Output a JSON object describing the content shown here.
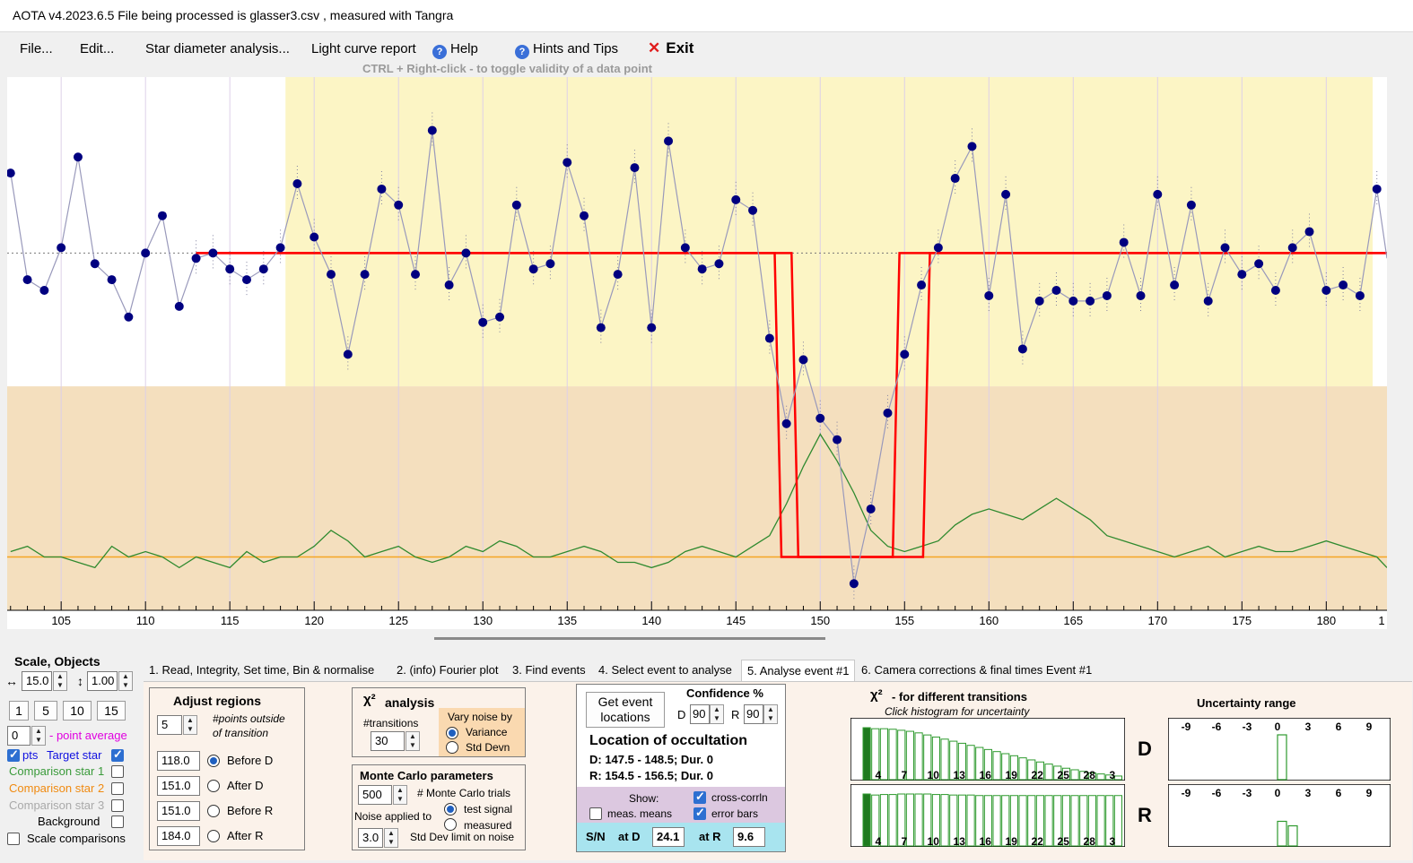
{
  "app": {
    "title": "AOTA v4.2023.6.5    File being processed is  glasser3.csv ,  measured with Tangra"
  },
  "menu": {
    "file": "File...",
    "edit": "Edit...",
    "star_diameter": "Star diameter analysis...",
    "light_curve": "Light curve report",
    "help": "Help",
    "hints": "Hints and Tips",
    "exit": "Exit",
    "hint_text": "CTRL + Right-click   -   to toggle validity of a data point"
  },
  "plot": {
    "x_ticks": [
      "105",
      "110",
      "115",
      "120",
      "125",
      "130",
      "135",
      "140",
      "145",
      "150",
      "155",
      "160",
      "165",
      "170",
      "175",
      "180",
      "1"
    ],
    "x_min": 101.8,
    "x_max": 183.6,
    "colors": {
      "target": "#000080",
      "comparison1": "#2f8a2f",
      "model": "#ff0000",
      "yellow_region": "#fcf5c5",
      "tan_region": "#f4dfbe",
      "baseline": "#f5a623"
    },
    "target_points": [
      [
        102,
        0.82
      ],
      [
        103,
        0.62
      ],
      [
        104,
        0.6
      ],
      [
        105,
        0.68
      ],
      [
        106,
        0.85
      ],
      [
        107,
        0.65
      ],
      [
        108,
        0.62
      ],
      [
        109,
        0.55
      ],
      [
        110,
        0.67
      ],
      [
        111,
        0.74
      ],
      [
        112,
        0.57
      ],
      [
        113,
        0.66
      ],
      [
        114,
        0.67
      ],
      [
        115,
        0.64
      ],
      [
        116,
        0.62
      ],
      [
        117,
        0.64
      ],
      [
        118,
        0.68
      ],
      [
        119,
        0.8
      ],
      [
        120,
        0.7
      ],
      [
        121,
        0.63
      ],
      [
        122,
        0.48
      ],
      [
        123,
        0.63
      ],
      [
        124,
        0.79
      ],
      [
        125,
        0.76
      ],
      [
        126,
        0.63
      ],
      [
        127,
        0.9
      ],
      [
        128,
        0.61
      ],
      [
        129,
        0.67
      ],
      [
        130,
        0.54
      ],
      [
        131,
        0.55
      ],
      [
        132,
        0.76
      ],
      [
        133,
        0.64
      ],
      [
        134,
        0.65
      ],
      [
        135,
        0.84
      ],
      [
        136,
        0.74
      ],
      [
        137,
        0.53
      ],
      [
        138,
        0.63
      ],
      [
        139,
        0.83
      ],
      [
        140,
        0.53
      ],
      [
        141,
        0.88
      ],
      [
        142,
        0.68
      ],
      [
        143,
        0.64
      ],
      [
        144,
        0.65
      ],
      [
        145,
        0.77
      ],
      [
        146,
        0.75
      ],
      [
        147,
        0.51
      ],
      [
        148,
        0.35
      ],
      [
        149,
        0.47
      ],
      [
        150,
        0.36
      ],
      [
        151,
        0.32
      ],
      [
        152,
        0.05
      ],
      [
        153,
        0.19
      ],
      [
        154,
        0.37
      ],
      [
        155,
        0.48
      ],
      [
        156,
        0.61
      ],
      [
        157,
        0.68
      ],
      [
        158,
        0.81
      ],
      [
        159,
        0.87
      ],
      [
        160,
        0.59
      ],
      [
        161,
        0.78
      ],
      [
        162,
        0.49
      ],
      [
        163,
        0.58
      ],
      [
        164,
        0.6
      ],
      [
        165,
        0.58
      ],
      [
        166,
        0.58
      ],
      [
        167,
        0.59
      ],
      [
        168,
        0.69
      ],
      [
        169,
        0.59
      ],
      [
        170,
        0.78
      ],
      [
        171,
        0.61
      ],
      [
        172,
        0.76
      ],
      [
        173,
        0.58
      ],
      [
        174,
        0.68
      ],
      [
        175,
        0.63
      ],
      [
        176,
        0.65
      ],
      [
        177,
        0.6
      ],
      [
        178,
        0.68
      ],
      [
        179,
        0.71
      ],
      [
        180,
        0.6
      ],
      [
        181,
        0.61
      ],
      [
        182,
        0.59
      ],
      [
        183,
        0.79
      ],
      [
        183.6,
        0.66
      ]
    ],
    "comparison1": [
      [
        102,
        0.11
      ],
      [
        103,
        0.12
      ],
      [
        104,
        0.1
      ],
      [
        105,
        0.1
      ],
      [
        106,
        0.09
      ],
      [
        107,
        0.08
      ],
      [
        108,
        0.12
      ],
      [
        109,
        0.1
      ],
      [
        110,
        0.11
      ],
      [
        111,
        0.1
      ],
      [
        112,
        0.08
      ],
      [
        113,
        0.1
      ],
      [
        114,
        0.09
      ],
      [
        115,
        0.08
      ],
      [
        116,
        0.11
      ],
      [
        117,
        0.09
      ],
      [
        118,
        0.1
      ],
      [
        119,
        0.1
      ],
      [
        120,
        0.12
      ],
      [
        121,
        0.15
      ],
      [
        122,
        0.13
      ],
      [
        123,
        0.1
      ],
      [
        124,
        0.11
      ],
      [
        125,
        0.12
      ],
      [
        126,
        0.1
      ],
      [
        127,
        0.09
      ],
      [
        128,
        0.1
      ],
      [
        129,
        0.12
      ],
      [
        130,
        0.11
      ],
      [
        131,
        0.13
      ],
      [
        132,
        0.12
      ],
      [
        133,
        0.1
      ],
      [
        134,
        0.1
      ],
      [
        135,
        0.11
      ],
      [
        136,
        0.12
      ],
      [
        137,
        0.11
      ],
      [
        138,
        0.09
      ],
      [
        139,
        0.09
      ],
      [
        140,
        0.08
      ],
      [
        141,
        0.09
      ],
      [
        142,
        0.11
      ],
      [
        143,
        0.12
      ],
      [
        144,
        0.11
      ],
      [
        145,
        0.1
      ],
      [
        146,
        0.12
      ],
      [
        147,
        0.14
      ],
      [
        148,
        0.2
      ],
      [
        149,
        0.27
      ],
      [
        150,
        0.33
      ],
      [
        151,
        0.28
      ],
      [
        152,
        0.22
      ],
      [
        153,
        0.15
      ],
      [
        154,
        0.12
      ],
      [
        155,
        0.11
      ],
      [
        156,
        0.12
      ],
      [
        157,
        0.13
      ],
      [
        158,
        0.16
      ],
      [
        159,
        0.18
      ],
      [
        160,
        0.19
      ],
      [
        161,
        0.18
      ],
      [
        162,
        0.17
      ],
      [
        163,
        0.19
      ],
      [
        164,
        0.21
      ],
      [
        165,
        0.19
      ],
      [
        166,
        0.17
      ],
      [
        167,
        0.14
      ],
      [
        168,
        0.13
      ],
      [
        169,
        0.12
      ],
      [
        170,
        0.11
      ],
      [
        171,
        0.1
      ],
      [
        172,
        0.11
      ],
      [
        173,
        0.12
      ],
      [
        174,
        0.1
      ],
      [
        175,
        0.11
      ],
      [
        176,
        0.12
      ],
      [
        177,
        0.11
      ],
      [
        178,
        0.11
      ],
      [
        179,
        0.12
      ],
      [
        180,
        0.13
      ],
      [
        181,
        0.12
      ],
      [
        182,
        0.11
      ],
      [
        183,
        0.1
      ],
      [
        183.6,
        0.08
      ]
    ],
    "model_upper": 0.67,
    "model_lower": 0.1,
    "baseline_level": 0.1,
    "d_range": [
      147.5,
      148.5
    ],
    "r_range": [
      154.5,
      156.5
    ],
    "yellow_start": 118.3,
    "tan_split": 0.42
  },
  "sidebar": {
    "scale_title": "Scale,  Objects",
    "scale_value": "15.0",
    "vscale_value": "1.00",
    "presets": [
      "1",
      "5",
      "10",
      "15"
    ],
    "avg_value": "0",
    "avg_label": "- point average",
    "pts_label": "pts",
    "target_label": "Target star",
    "comp1": "Comparison star 1",
    "comp2": "Comparison star 2",
    "comp3": "Comparison star 3",
    "background": "Background",
    "scale_comparisons": "Scale comparisons",
    "comp1_color": "#3a9a3a",
    "comp2_color": "#f08a10",
    "comp3_color": "#a9a9a9"
  },
  "tabs": [
    "1.  Read, Integrity, Set time, Bin & normalise",
    "2. (info)  Fourier plot",
    "3. Find events",
    "4. Select event to analyse",
    "5. Analyse event #1",
    "6. Camera corrections & final times Event #1"
  ],
  "adjust": {
    "title": "Adjust regions",
    "points_value": "5",
    "points_label1": "#points outside",
    "points_label2": "of transition",
    "values": [
      "118.0",
      "151.0",
      "151.0",
      "184.0"
    ],
    "labels": [
      "Before D",
      "After D",
      "Before R",
      "After R"
    ]
  },
  "chi2": {
    "title": "analysis",
    "transitions_label": "#transitions",
    "transitions_value": "30",
    "vary_label": "Vary noise by",
    "variance": "Variance",
    "stddev": "Std Devn"
  },
  "mc": {
    "title": "Monte Carlo parameters",
    "trials_value": "500",
    "trials_label": "# Monte Carlo trials",
    "noise_label": "Noise applied to",
    "test_signal": "test signal",
    "measured": "measured",
    "std_value": "3.0",
    "std_label": "Std Dev limit on noise"
  },
  "event": {
    "get_btn1": "Get event",
    "get_btn2": "locations",
    "confidence": "Confidence %",
    "d_label": "D",
    "d_value": "90",
    "r_label": "R",
    "r_value": "90",
    "location_title": "Location of occultation",
    "d_result": "D: 147.5 - 148.5; Dur. 0",
    "r_result": "R: 154.5 - 156.5; Dur. 0",
    "show": "Show:",
    "meas_means": "meas. means",
    "cross_corr": "cross-corrln",
    "error_bars": "error bars",
    "sn": "S/N",
    "at_d": "at D",
    "sn_d": "24.1",
    "at_r": "at R",
    "sn_r": "9.6"
  },
  "histogram": {
    "title": "- for different transitions",
    "subtitle": "Click histogram for uncertainty",
    "labels": [
      "4",
      "7",
      "10",
      "13",
      "16",
      "19",
      "22",
      "25",
      "28",
      "3"
    ],
    "d_label": "D",
    "r_label": "R",
    "d_values": [
      1.0,
      0.98,
      0.98,
      0.97,
      0.95,
      0.93,
      0.9,
      0.86,
      0.82,
      0.78,
      0.74,
      0.7,
      0.66,
      0.62,
      0.58,
      0.54,
      0.5,
      0.46,
      0.42,
      0.38,
      0.34,
      0.3,
      0.26,
      0.22,
      0.19,
      0.16,
      0.13,
      0.11,
      0.09,
      0.07
    ],
    "r_values": [
      1.0,
      0.98,
      0.99,
      0.99,
      1.0,
      1.0,
      1.0,
      1.0,
      0.99,
      0.99,
      0.98,
      0.98,
      0.98,
      0.97,
      0.97,
      0.97,
      0.97,
      0.97,
      0.97,
      0.97,
      0.97,
      0.97,
      0.97,
      0.97,
      0.97,
      0.97,
      0.97,
      0.97,
      0.97,
      0.97
    ]
  },
  "uncertainty": {
    "title": "Uncertainty range",
    "ticks": [
      "-9",
      "-6",
      "-3",
      "0",
      "3",
      "6",
      "9"
    ]
  }
}
